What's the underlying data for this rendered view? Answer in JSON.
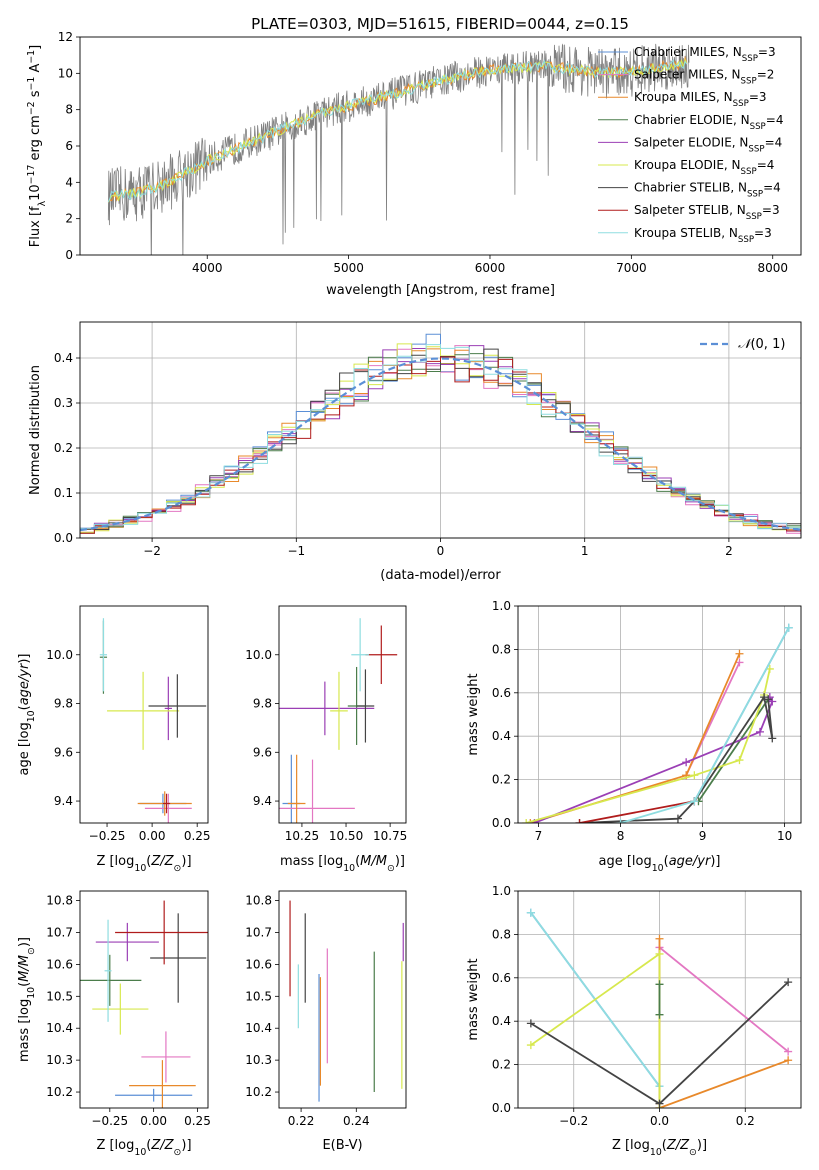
{
  "title": "PLATE=0303, MJD=51615, FIBERID=0044, z=0.15",
  "colors": {
    "chabrier_miles": "#5b8fd6",
    "salpeter_miles": "#e377c2",
    "kroupa_miles": "#e8892b",
    "chabrier_elodie": "#4b7d4b",
    "salpeter_elodie": "#9b3fb5",
    "kroupa_elodie": "#d7e84e",
    "chabrier_stelib": "#444444",
    "salpeter_stelib": "#b01c1c",
    "kroupa_stelib": "#8fdde0",
    "data": "#7f7f7f",
    "gaussian": "#5b8fd6"
  },
  "chart_data": [
    {
      "id": "spectrum",
      "type": "line",
      "xlabel": "wavelength [Angstrom, rest frame]",
      "ylabel": "Flux [f",
      "xlim": [
        3100,
        8200
      ],
      "ylim": [
        0,
        12
      ],
      "xticks": [
        "4000",
        "5000",
        "6000",
        "7000",
        "8000"
      ],
      "yticks": [
        "0",
        "2",
        "4",
        "6",
        "8",
        "10",
        "12"
      ],
      "legend_position": "top-right",
      "legend": [
        {
          "key": "chabrier_miles",
          "label": "Chabrier MILES, N",
          "n": "=3"
        },
        {
          "key": "salpeter_miles",
          "label": "Salpeter MILES, N",
          "n": "=2"
        },
        {
          "key": "kroupa_miles",
          "label": "Kroupa MILES, N",
          "n": "=3"
        },
        {
          "key": "chabrier_elodie",
          "label": "Chabrier ELODIE, N",
          "n": "=4"
        },
        {
          "key": "salpeter_elodie",
          "label": "Salpeter ELODIE, N",
          "n": "=4"
        },
        {
          "key": "kroupa_elodie",
          "label": "Kroupa ELODIE, N",
          "n": "=4"
        },
        {
          "key": "chabrier_stelib",
          "label": "Chabrier STELIB, N",
          "n": "=4"
        },
        {
          "key": "salpeter_stelib",
          "label": "Salpeter STELIB, N",
          "n": "=3"
        },
        {
          "key": "kroupa_stelib",
          "label": "Kroupa STELIB, N",
          "n": "=3"
        }
      ],
      "continuum": {
        "x": [
          3300,
          3500,
          3700,
          3800,
          4000,
          4400,
          4800,
          5200,
          5600,
          6000,
          6400,
          6800,
          7000,
          7400
        ],
        "y": [
          3.2,
          3.4,
          3.9,
          4.3,
          5.2,
          6.5,
          7.8,
          8.6,
          9.5,
          10.2,
          10.4,
          10.0,
          10.1,
          10.6
        ]
      }
    },
    {
      "id": "histogram",
      "type": "line",
      "xlabel": "(data-model)/error",
      "ylabel": "Normed distribution",
      "xlim": [
        -2.5,
        2.5
      ],
      "ylim": [
        0,
        0.48
      ],
      "xticks": [
        "−2",
        "−1",
        "0",
        "1",
        "2"
      ],
      "yticks": [
        "0.0",
        "0.1",
        "0.2",
        "0.3",
        "0.4"
      ],
      "legend_label": "(0, 1)",
      "legend_position": "top-right",
      "bin_width": 0.1
    },
    {
      "id": "age_vs_Z",
      "type": "scatter",
      "xlabel": "Z [log",
      "ylabel": "age  [log",
      "xlim": [
        -0.4,
        0.31
      ],
      "ylim": [
        9.31,
        10.2
      ],
      "xticks": [
        "−0.25",
        "0.00",
        "0.25"
      ],
      "yticks": [
        "9.4",
        "9.6",
        "9.8",
        "10.0"
      ],
      "points": [
        {
          "key": "chabrier_miles",
          "x": 0.06,
          "xerr": 0.13,
          "y": 9.39,
          "yerr": 0.04
        },
        {
          "key": "salpeter_miles",
          "x": 0.09,
          "xerr": 0.13,
          "y": 9.37,
          "yerr": 0.06
        },
        {
          "key": "kroupa_miles",
          "x": 0.07,
          "xerr": 0.15,
          "y": 9.39,
          "yerr": 0.05
        },
        {
          "key": "chabrier_elodie",
          "x": -0.27,
          "xerr": 0.02,
          "y": 9.99,
          "yerr": 0.15
        },
        {
          "key": "salpeter_elodie",
          "x": 0.09,
          "xerr": 0.02,
          "y": 9.78,
          "yerr": 0.13
        },
        {
          "key": "kroupa_elodie",
          "x": -0.05,
          "xerr": 0.2,
          "y": 9.77,
          "yerr": 0.16
        },
        {
          "key": "chabrier_stelib",
          "x": 0.14,
          "xerr": 0.16,
          "y": 9.79,
          "yerr": 0.13
        },
        {
          "key": "salpeter_stelib",
          "x": 0.08,
          "xerr": 0.02,
          "y": 9.39,
          "yerr": 0.04
        },
        {
          "key": "kroupa_stelib",
          "x": -0.27,
          "xerr": 0.02,
          "y": 10.0,
          "yerr": 0.15
        }
      ]
    },
    {
      "id": "age_vs_mass",
      "type": "scatter",
      "xlabel": "mass [log",
      "ylabel": "",
      "xlim": [
        10.12,
        10.84
      ],
      "ylim": [
        9.31,
        10.2
      ],
      "xticks": [
        "10.25",
        "10.50",
        "10.75"
      ],
      "yticks": [
        "9.4",
        "9.6",
        "9.8",
        "10.0"
      ],
      "points": [
        {
          "key": "chabrier_miles",
          "x": 10.19,
          "xerr": 0.05,
          "y": 9.39,
          "yerr": 0.2
        },
        {
          "key": "salpeter_miles",
          "x": 10.31,
          "xerr": 0.24,
          "y": 9.37,
          "yerr": 0.2
        },
        {
          "key": "kroupa_miles",
          "x": 10.22,
          "xerr": 0.05,
          "y": 9.39,
          "yerr": 0.2
        },
        {
          "key": "chabrier_elodie",
          "x": 10.56,
          "xerr": 0.05,
          "y": 9.79,
          "yerr": 0.16
        },
        {
          "key": "salpeter_elodie",
          "x": 10.38,
          "xerr": 0.28,
          "y": 9.78,
          "yerr": 0.11
        },
        {
          "key": "kroupa_elodie",
          "x": 10.46,
          "xerr": 0.05,
          "y": 9.77,
          "yerr": 0.16
        },
        {
          "key": "chabrier_stelib",
          "x": 10.61,
          "xerr": 0.05,
          "y": 9.79,
          "yerr": 0.15
        },
        {
          "key": "salpeter_stelib",
          "x": 10.7,
          "xerr": 0.09,
          "y": 10.0,
          "yerr": 0.12
        },
        {
          "key": "kroupa_stelib",
          "x": 10.58,
          "xerr": 0.05,
          "y": 10.0,
          "yerr": 0.15
        }
      ]
    },
    {
      "id": "mass_weight_vs_age",
      "type": "line",
      "xlabel": "age  [log",
      "ylabel": "mass weight",
      "xlim": [
        6.75,
        10.2
      ],
      "ylim": [
        0,
        1.0
      ],
      "xticks": [
        "7",
        "8",
        "9",
        "10"
      ],
      "yticks": [
        "0.0",
        "0.2",
        "0.4",
        "0.6",
        "0.8",
        "1.0"
      ],
      "series": [
        {
          "key": "chabrier_miles",
          "x": [
            8.9,
            10.05
          ],
          "y": [
            0.1,
            0.9
          ]
        },
        {
          "key": "salpeter_miles",
          "x": [
            8.8,
            9.45
          ],
          "y": [
            0.22,
            0.74
          ]
        },
        {
          "key": "kroupa_miles",
          "x": [
            6.9,
            8.8,
            9.45
          ],
          "y": [
            0.0,
            0.22,
            0.78
          ]
        },
        {
          "key": "chabrier_elodie",
          "x": [
            8.95,
            9.8
          ],
          "y": [
            0.1,
            0.57
          ]
        },
        {
          "key": "salpeter_elodie",
          "x": [
            6.95,
            8.8,
            9.7,
            9.85,
            9.82
          ],
          "y": [
            0.0,
            0.28,
            0.42,
            0.56,
            0.58
          ]
        },
        {
          "key": "kroupa_elodie",
          "x": [
            6.85,
            8.9,
            9.45,
            9.75,
            9.82
          ],
          "y": [
            0.0,
            0.22,
            0.29,
            0.59,
            0.71
          ]
        },
        {
          "key": "chabrier_stelib",
          "x": [
            7.5,
            8.7,
            8.9,
            9.75,
            9.85,
            9.8
          ],
          "y": [
            0.0,
            0.02,
            0.1,
            0.58,
            0.39,
            0.57
          ]
        },
        {
          "key": "salpeter_stelib",
          "x": [
            7.5,
            8.9
          ],
          "y": [
            0.0,
            0.1
          ]
        },
        {
          "key": "kroupa_stelib",
          "x": [
            8.0,
            8.9,
            10.05
          ],
          "y": [
            0.0,
            0.1,
            0.9
          ]
        }
      ]
    },
    {
      "id": "mass_vs_Z",
      "type": "scatter",
      "xlabel": "Z [log",
      "ylabel": "mass [log",
      "xlim": [
        -0.42,
        0.31
      ],
      "ylim": [
        10.15,
        10.83
      ],
      "xticks": [
        "−0.25",
        "0.00",
        "0.25"
      ],
      "yticks": [
        "10.2",
        "10.3",
        "10.4",
        "10.5",
        "10.6",
        "10.7",
        "10.8"
      ],
      "points": [
        {
          "key": "chabrier_miles",
          "x": 0.0,
          "xerr": 0.22,
          "y": 10.19,
          "yerr": 0.02
        },
        {
          "key": "salpeter_miles",
          "x": 0.07,
          "xerr": 0.14,
          "y": 10.31,
          "yerr": 0.08
        },
        {
          "key": "kroupa_miles",
          "x": 0.05,
          "xerr": 0.19,
          "y": 10.22,
          "yerr": 0.08
        },
        {
          "key": "chabrier_elodie",
          "x": -0.25,
          "xerr": 0.18,
          "y": 10.55,
          "yerr": 0.08
        },
        {
          "key": "salpeter_elodie",
          "x": -0.15,
          "xerr": 0.18,
          "y": 10.67,
          "yerr": 0.06
        },
        {
          "key": "kroupa_elodie",
          "x": -0.19,
          "xerr": 0.16,
          "y": 10.46,
          "yerr": 0.08
        },
        {
          "key": "chabrier_stelib",
          "x": 0.14,
          "xerr": 0.16,
          "y": 10.62,
          "yerr": 0.14
        },
        {
          "key": "salpeter_stelib",
          "x": 0.06,
          "xerr": 0.28,
          "y": 10.7,
          "yerr": 0.1
        },
        {
          "key": "kroupa_stelib",
          "x": -0.26,
          "xerr": 0.02,
          "y": 10.58,
          "yerr": 0.16
        }
      ]
    },
    {
      "id": "mass_vs_ebv",
      "type": "scatter",
      "xlabel": "E(B-V)",
      "ylabel": "",
      "xlim": [
        0.212,
        0.258
      ],
      "ylim": [
        10.15,
        10.83
      ],
      "xticks": [
        "0.22",
        "0.24"
      ],
      "yticks": [
        "10.2",
        "10.3",
        "10.4",
        "10.5",
        "10.6",
        "10.7",
        "10.8"
      ],
      "points": [
        {
          "key": "salpeter_stelib",
          "x": 0.216,
          "y": 10.65,
          "yerr": 0.15
        },
        {
          "key": "kroupa_stelib",
          "x": 0.219,
          "y": 10.5,
          "yerr": 0.1
        },
        {
          "key": "chabrier_stelib",
          "x": 0.2215,
          "y": 10.62,
          "yerr": 0.14
        },
        {
          "key": "chabrier_miles",
          "x": 0.2265,
          "y": 10.37,
          "yerr": 0.2
        },
        {
          "key": "kroupa_miles",
          "x": 0.227,
          "y": 10.39,
          "yerr": 0.17
        },
        {
          "key": "salpeter_miles",
          "x": 0.2295,
          "y": 10.47,
          "yerr": 0.18
        },
        {
          "key": "chabrier_elodie",
          "x": 0.2465,
          "y": 10.42,
          "yerr": 0.22
        },
        {
          "key": "salpeter_elodie",
          "x": 0.257,
          "y": 10.67,
          "yerr": 0.06
        },
        {
          "key": "kroupa_elodie",
          "x": 0.2565,
          "y": 10.41,
          "yerr": 0.2
        }
      ]
    },
    {
      "id": "mass_weight_vs_Z",
      "type": "line",
      "xlabel": "Z [log",
      "ylabel": "mass weight",
      "xlim": [
        -0.33,
        0.33
      ],
      "ylim": [
        0,
        1.0
      ],
      "xticks": [
        "−0.2",
        "0.0",
        "0.2"
      ],
      "yticks": [
        "0.0",
        "0.2",
        "0.4",
        "0.6",
        "0.8",
        "1.0"
      ],
      "series": [
        {
          "key": "chabrier_miles",
          "x": [
            -0.3,
            0.0
          ],
          "y": [
            0.9,
            0.1
          ]
        },
        {
          "key": "kroupa_stelib",
          "x": [
            -0.3,
            0.0
          ],
          "y": [
            0.9,
            0.1
          ]
        },
        {
          "key": "salpeter_miles",
          "x": [
            0.0,
            0.0,
            0.3
          ],
          "y": [
            0.0,
            0.74,
            0.26
          ]
        },
        {
          "key": "kroupa_miles",
          "x": [
            0.0,
            0.0,
            0.0,
            0.3
          ],
          "y": [
            0.78,
            0.02,
            0.0,
            0.22
          ]
        },
        {
          "key": "kroupa_elodie",
          "x": [
            -0.3,
            0.0,
            0.0
          ],
          "y": [
            0.29,
            0.71,
            0.0
          ]
        },
        {
          "key": "chabrier_stelib",
          "x": [
            -0.3,
            0.0,
            0.3
          ],
          "y": [
            0.39,
            0.02,
            0.58
          ]
        },
        {
          "key": "chabrier_elodie",
          "x": [
            0.0,
            0.0
          ],
          "y": [
            0.57,
            0.43
          ]
        }
      ]
    }
  ]
}
